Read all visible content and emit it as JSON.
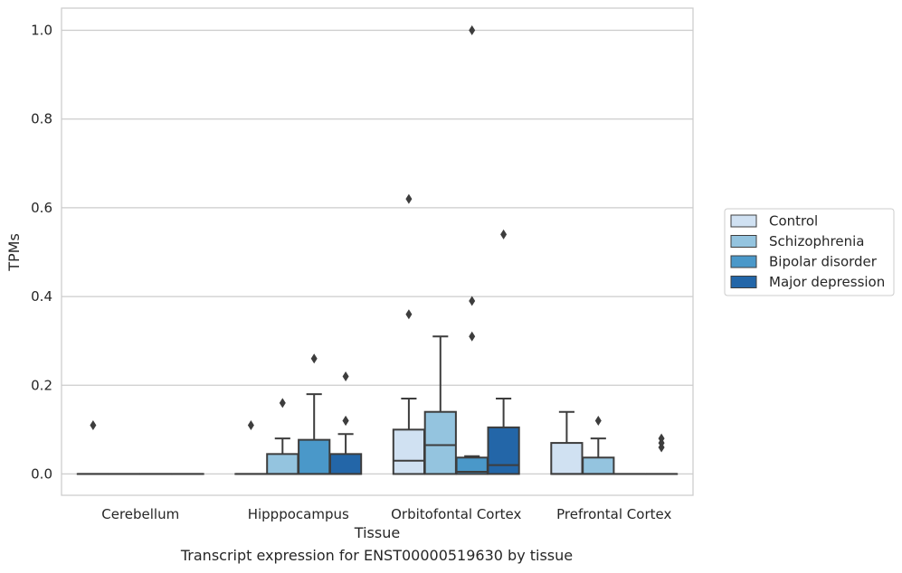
{
  "caption": "Transcript expression for ENST00000519630 by tissue",
  "chart_data": {
    "type": "box",
    "xlabel": "Tissue",
    "ylabel": "TPMs",
    "ylim": [
      -0.048,
      1.05
    ],
    "yticks": [
      0.0,
      0.2,
      0.4,
      0.6,
      0.8,
      1.0
    ],
    "ytick_labels": [
      "0.0",
      "0.2",
      "0.4",
      "0.6",
      "0.8",
      "1.0"
    ],
    "grid": "horizontal",
    "legend_placement": "right",
    "categories": [
      "Cerebellum",
      "Hipppocampus",
      "Orbitofontal Cortex",
      "Prefrontal Cortex"
    ],
    "series": [
      {
        "name": "Control",
        "color": "#d0e1f2",
        "boxes": [
          {
            "q1": 0.0,
            "median": 0.0,
            "q3": 0.0,
            "whislo": 0.0,
            "whishi": 0.0,
            "fliers": [
              0.11
            ]
          },
          {
            "q1": 0.0,
            "median": 0.0,
            "q3": 0.0,
            "whislo": 0.0,
            "whishi": 0.0,
            "fliers": [
              0.11
            ]
          },
          {
            "q1": 0.0,
            "median": 0.03,
            "q3": 0.1,
            "whislo": 0.0,
            "whishi": 0.17,
            "fliers": [
              0.36,
              0.62
            ]
          },
          {
            "q1": 0.0,
            "median": 0.0,
            "q3": 0.07,
            "whislo": 0.0,
            "whishi": 0.14,
            "fliers": []
          }
        ]
      },
      {
        "name": "Schizophrenia",
        "color": "#94c4df",
        "boxes": [
          {
            "q1": 0.0,
            "median": 0.0,
            "q3": 0.0,
            "whislo": 0.0,
            "whishi": 0.0,
            "fliers": []
          },
          {
            "q1": 0.0,
            "median": 0.0,
            "q3": 0.045,
            "whislo": 0.0,
            "whishi": 0.08,
            "fliers": [
              0.16
            ]
          },
          {
            "q1": 0.0,
            "median": 0.065,
            "q3": 0.14,
            "whislo": 0.0,
            "whishi": 0.31,
            "fliers": []
          },
          {
            "q1": 0.0,
            "median": 0.0,
            "q3": 0.037,
            "whislo": 0.0,
            "whishi": 0.08,
            "fliers": [
              0.12
            ]
          }
        ]
      },
      {
        "name": "Bipolar disorder",
        "color": "#4a98c9",
        "boxes": [
          {
            "q1": 0.0,
            "median": 0.0,
            "q3": 0.0,
            "whislo": 0.0,
            "whishi": 0.0,
            "fliers": []
          },
          {
            "q1": 0.0,
            "median": 0.0,
            "q3": 0.077,
            "whislo": 0.0,
            "whishi": 0.18,
            "fliers": [
              0.26
            ]
          },
          {
            "q1": 0.0,
            "median": 0.005,
            "q3": 0.037,
            "whislo": 0.0,
            "whishi": 0.04,
            "fliers": [
              0.31,
              0.39,
              1.0
            ]
          },
          {
            "q1": 0.0,
            "median": 0.0,
            "q3": 0.0,
            "whislo": 0.0,
            "whishi": 0.0,
            "fliers": []
          }
        ]
      },
      {
        "name": "Major depression",
        "color": "#2366a8",
        "boxes": [
          {
            "q1": 0.0,
            "median": 0.0,
            "q3": 0.0,
            "whislo": 0.0,
            "whishi": 0.0,
            "fliers": []
          },
          {
            "q1": 0.0,
            "median": 0.0,
            "q3": 0.045,
            "whislo": 0.0,
            "whishi": 0.09,
            "fliers": [
              0.12,
              0.12,
              0.22
            ]
          },
          {
            "q1": 0.0,
            "median": 0.02,
            "q3": 0.105,
            "whislo": 0.0,
            "whishi": 0.17,
            "fliers": [
              0.54
            ]
          },
          {
            "q1": 0.0,
            "median": 0.0,
            "q3": 0.0,
            "whislo": 0.0,
            "whishi": 0.0,
            "fliers": [
              0.06,
              0.07,
              0.08
            ]
          }
        ]
      }
    ]
  }
}
